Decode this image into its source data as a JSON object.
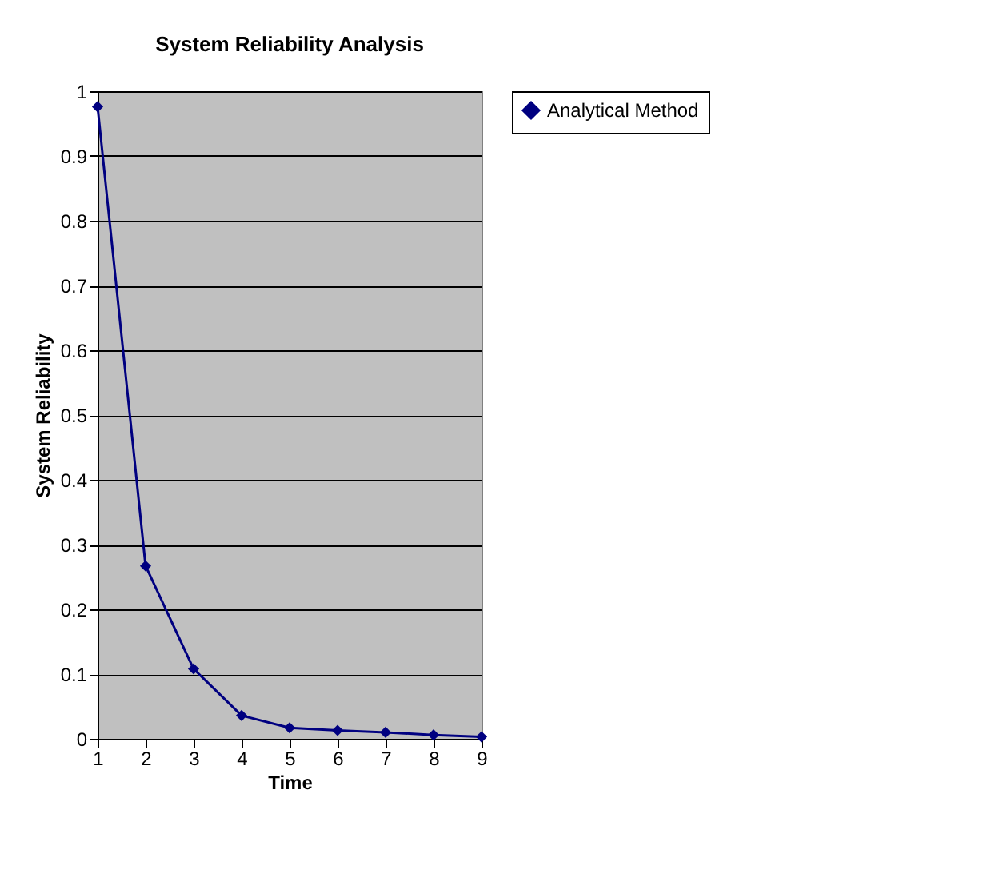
{
  "chart_data": {
    "type": "line",
    "title": "System Reliability Analysis",
    "xlabel": "Time",
    "ylabel": "System Reliability",
    "categories": [
      "1",
      "2",
      "3",
      "4",
      "5",
      "6",
      "7",
      "8",
      "9"
    ],
    "series": [
      {
        "name": "Analytical Method",
        "color": "#000080",
        "values": [
          0.976,
          0.267,
          0.108,
          0.036,
          0.017,
          0.013,
          0.01,
          0.006,
          0.003
        ]
      }
    ],
    "ylim": [
      0,
      1
    ],
    "yticks": [
      0,
      0.1,
      0.2,
      0.3,
      0.4,
      0.5,
      0.6,
      0.7,
      0.8,
      0.9,
      1
    ],
    "grid": "y",
    "legend": "right",
    "marker": "diamond",
    "line_style": "solid"
  }
}
